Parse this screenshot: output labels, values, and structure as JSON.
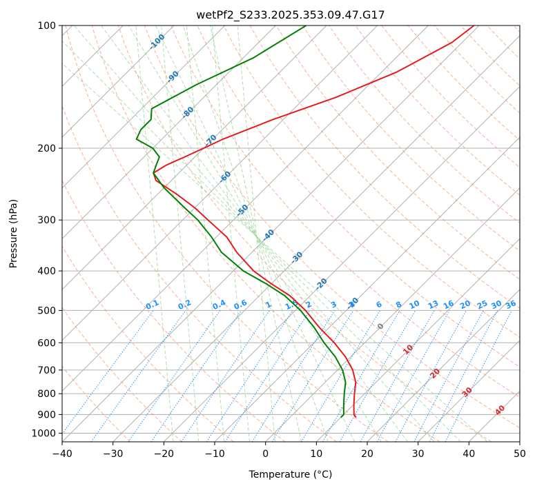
{
  "chart_data": {
    "type": "line",
    "subtype": "skew-t log-p",
    "title": "wetPf2_S233.2025.353.09.47.G17",
    "xlabel": "Temperature (°C)",
    "ylabel": "Pressure (hPa)",
    "xlim": [
      -40,
      50
    ],
    "ylim": [
      1050,
      100
    ],
    "y_scale": "log",
    "skew": true,
    "grid": true,
    "x_ticks": [
      "−40",
      "−30",
      "−20",
      "−10",
      "0",
      "10",
      "20",
      "30",
      "40",
      "50"
    ],
    "y_ticks": [
      "100",
      "200",
      "300",
      "400",
      "500",
      "600",
      "700",
      "800",
      "900",
      "1000"
    ],
    "y_tick_values": [
      100,
      200,
      300,
      400,
      500,
      600,
      700,
      800,
      900,
      1000
    ],
    "series": [
      {
        "color": "#e41a1c",
        "points": [
          [
            100,
            -41
          ],
          [
            110,
            -42
          ],
          [
            130,
            -47
          ],
          [
            150,
            -54
          ],
          [
            170,
            -62
          ],
          [
            190,
            -68
          ],
          [
            200,
            -70
          ],
          [
            210,
            -72
          ],
          [
            220,
            -74
          ],
          [
            230,
            -75
          ],
          [
            240,
            -73
          ],
          [
            260,
            -66
          ],
          [
            280,
            -60
          ],
          [
            300,
            -55
          ],
          [
            330,
            -48
          ],
          [
            360,
            -43
          ],
          [
            400,
            -36
          ],
          [
            430,
            -30
          ],
          [
            460,
            -24
          ],
          [
            500,
            -18
          ],
          [
            550,
            -12
          ],
          [
            600,
            -6
          ],
          [
            650,
            -1
          ],
          [
            700,
            3
          ],
          [
            750,
            6
          ],
          [
            800,
            8
          ],
          [
            850,
            10
          ],
          [
            900,
            12
          ],
          [
            915,
            13
          ]
        ]
      },
      {
        "color": "#008000",
        "points": [
          [
            100,
            -74
          ],
          [
            120,
            -78
          ],
          [
            140,
            -84
          ],
          [
            160,
            -88
          ],
          [
            170,
            -86
          ],
          [
            180,
            -86
          ],
          [
            190,
            -85
          ],
          [
            200,
            -80
          ],
          [
            210,
            -77
          ],
          [
            220,
            -76
          ],
          [
            230,
            -75
          ],
          [
            250,
            -70
          ],
          [
            280,
            -62
          ],
          [
            300,
            -57
          ],
          [
            330,
            -51
          ],
          [
            360,
            -46
          ],
          [
            400,
            -38
          ],
          [
            430,
            -31
          ],
          [
            460,
            -25
          ],
          [
            500,
            -19
          ],
          [
            550,
            -13
          ],
          [
            600,
            -8
          ],
          [
            650,
            -3
          ],
          [
            700,
            1
          ],
          [
            750,
            4
          ],
          [
            800,
            6
          ],
          [
            850,
            8
          ],
          [
            900,
            10
          ],
          [
            915,
            10
          ]
        ]
      }
    ],
    "isotherm_labels": [
      "-100",
      "-90",
      "-80",
      "-70",
      "-60",
      "-50",
      "-40",
      "-30",
      "-20",
      "-10",
      "0",
      "10",
      "20",
      "30",
      "40"
    ],
    "mixing_ratio_labels": [
      "0.1",
      "0.2",
      "0.4",
      "0.6",
      "1",
      "1.5",
      "2",
      "3",
      "4",
      "6",
      "8",
      "10",
      "13",
      "16",
      "20",
      "25",
      "30",
      "36"
    ],
    "colors": {
      "temperature": "#e41a1c",
      "dewpoint": "#008000",
      "isotherm_label": "#1f77b4",
      "mixing_ratio": "#1e90ff",
      "dry_adiabat": "#fc8d62",
      "moist_adiabat": "#8fcf8f",
      "grid": "#b0b0b0",
      "warm_label": "#d62728",
      "zero_label": "#808080"
    }
  }
}
